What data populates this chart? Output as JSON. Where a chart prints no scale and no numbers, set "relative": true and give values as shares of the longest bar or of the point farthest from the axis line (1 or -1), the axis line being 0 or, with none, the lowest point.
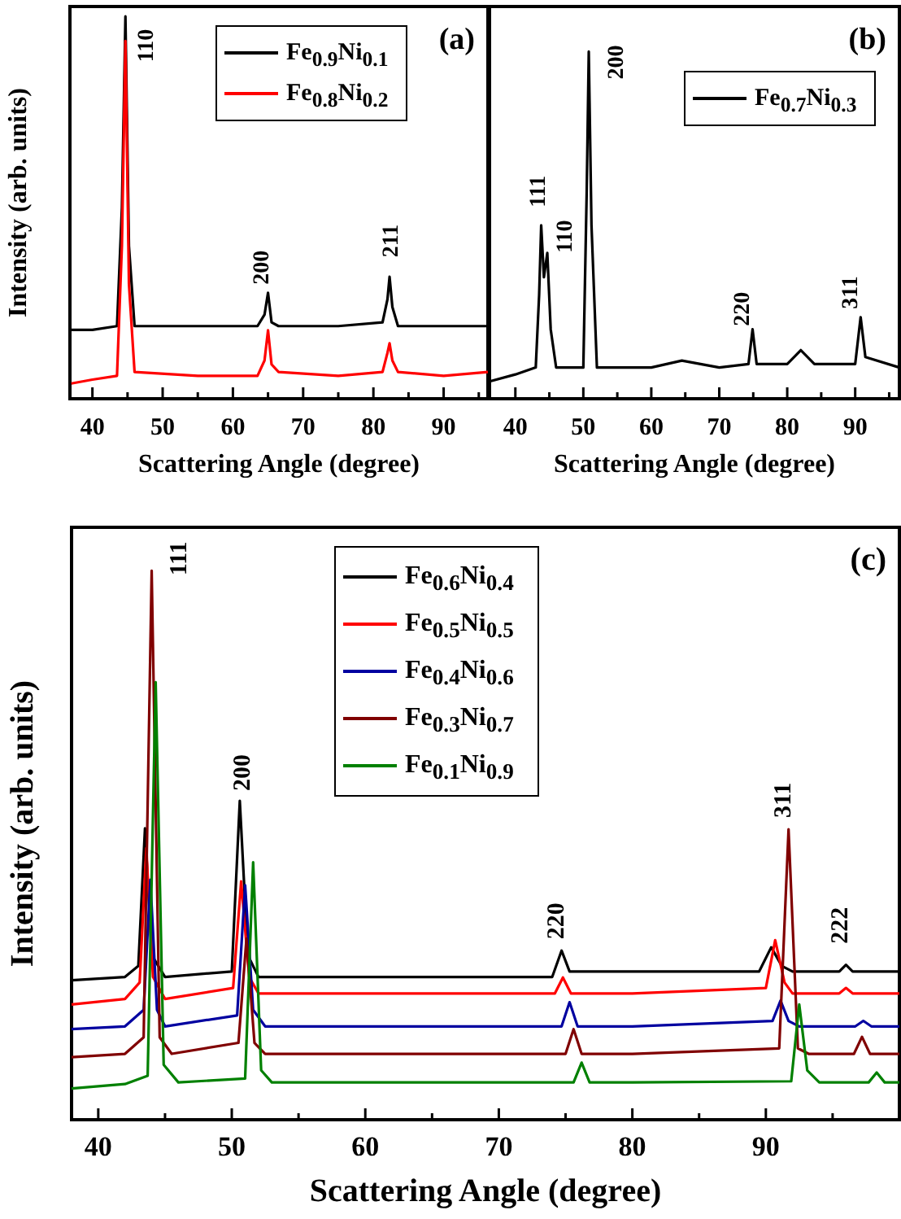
{
  "chart_data": [
    {
      "type": "line",
      "title": "(a)",
      "relative": true,
      "xlabel": "Scattering Angle (degree)",
      "ylabel": "Intensity (arb. units)",
      "xlim": [
        36.8,
        96.3
      ],
      "xticks": [
        40,
        {
          "value": 45,
          "label": null
        },
        50,
        {
          "value": 55,
          "label": null
        },
        60,
        {
          "value": 65,
          "label": null
        },
        70,
        {
          "value": 75,
          "label": null
        },
        80,
        {
          "value": 85,
          "label": null
        },
        90,
        {
          "value": 95,
          "label": null
        }
      ],
      "legend": "top",
      "grid": false,
      "series": [
        {
          "name": "Fe$_{0.9}$Ni$_{0.1}$",
          "color": "#000000",
          "x": [
            37,
            40,
            43.5,
            44.2,
            44.7,
            45.2,
            46,
            55,
            63.5,
            64.5,
            65,
            65.5,
            66.5,
            75,
            81.3,
            82,
            82.3,
            82.7,
            83.5,
            90,
            96.3
          ],
          "values": [
            0.18,
            0.18,
            0.19,
            0.5,
            1,
            0.4,
            0.19,
            0.19,
            0.19,
            0.22,
            0.277,
            0.2,
            0.19,
            0.19,
            0.2,
            0.26,
            0.319,
            0.24,
            0.19,
            0.19,
            0.19
          ]
        },
        {
          "name": "Fe$_{0.8}$Ni$_{0.2}$",
          "color": "#ff0000",
          "x": [
            37,
            40,
            43.5,
            44.2,
            44.7,
            45.2,
            46,
            55,
            63.5,
            64.5,
            65,
            65.5,
            66.5,
            75,
            81.3,
            82,
            82.3,
            82.7,
            83.5,
            90,
            96.3
          ],
          "values": [
            0.04,
            0.05,
            0.06,
            0.4,
            0.936,
            0.3,
            0.07,
            0.06,
            0.06,
            0.1,
            0.179,
            0.09,
            0.07,
            0.06,
            0.07,
            0.12,
            0.145,
            0.1,
            0.07,
            0.06,
            0.07
          ]
        }
      ],
      "annotations": [
        {
          "text": "110",
          "x": 44.7,
          "y": 1
        },
        {
          "text": "200",
          "x": 65,
          "y": 0.277
        },
        {
          "text": "211",
          "x": 82.3,
          "y": 0.319
        }
      ]
    },
    {
      "type": "line",
      "title": "(b)",
      "relative": true,
      "xlabel": "Scattering Angle (degree)",
      "xlim": [
        36.2,
        96.5
      ],
      "xticks": [
        40,
        {
          "value": 45,
          "label": null
        },
        50,
        {
          "value": 55,
          "label": null
        },
        60,
        {
          "value": 65,
          "label": null
        },
        70,
        {
          "value": 75,
          "label": null
        },
        80,
        {
          "value": 85,
          "label": null
        },
        90,
        {
          "value": 95,
          "label": null
        }
      ],
      "legend": "top right",
      "grid": false,
      "series": [
        {
          "name": "Fe$_{0.7}$Ni$_{0.3}$",
          "color": "#000000",
          "x": [
            36.2,
            40,
            43,
            43.5,
            43.8,
            44.2,
            44.7,
            45.2,
            46,
            50,
            50.5,
            50.8,
            51.2,
            52,
            60,
            64.5,
            70,
            74.3,
            74.9,
            75.5,
            80,
            82,
            84,
            90,
            90.8,
            91.5,
            96.5
          ],
          "values": [
            0.05,
            0.07,
            0.09,
            0.3,
            0.5,
            0.35,
            0.42,
            0.2,
            0.09,
            0.09,
            0.6,
            1,
            0.5,
            0.09,
            0.09,
            0.11,
            0.09,
            0.1,
            0.2,
            0.1,
            0.1,
            0.14,
            0.1,
            0.1,
            0.235,
            0.12,
            0.09
          ]
        }
      ],
      "annotations": [
        {
          "text": "111",
          "x": 43.8,
          "y": 0.5
        },
        {
          "text": "110",
          "x": 44.7,
          "y": 0.42
        },
        {
          "text": "200",
          "x": 50.8,
          "y": 1
        },
        {
          "text": "220",
          "x": 74.9,
          "y": 0.2
        },
        {
          "text": "311",
          "x": 90.8,
          "y": 0.235
        }
      ]
    },
    {
      "type": "line",
      "title": "(c)",
      "relative": true,
      "xlabel": "Scattering Angle (degree)",
      "ylabel": "Intensity (arb. units)",
      "xlim": [
        38,
        100
      ],
      "xticks": [
        40,
        {
          "value": 45,
          "label": null
        },
        50,
        {
          "value": 55,
          "label": null
        },
        60,
        {
          "value": 65,
          "label": null
        },
        70,
        {
          "value": 75,
          "label": null
        },
        80,
        {
          "value": 85,
          "label": null
        },
        90,
        {
          "value": 95,
          "label": null
        }
      ],
      "legend": "top",
      "grid": false,
      "series": [
        {
          "name": "Fe$_{0.6}$Ni$_{0.4}$",
          "color": "#000000",
          "x": [
            38,
            42,
            43,
            43.5,
            44,
            45,
            50,
            50.6,
            51.2,
            52,
            60,
            74,
            74.7,
            75.3,
            80,
            89.5,
            90.4,
            91.2,
            92,
            95.5,
            96,
            96.5,
            100
          ],
          "values": [
            0.254,
            0.26,
            0.28,
            0.531,
            0.3,
            0.26,
            0.27,
            0.581,
            0.3,
            0.26,
            0.26,
            0.26,
            0.308,
            0.27,
            0.27,
            0.27,
            0.314,
            0.28,
            0.27,
            0.27,
            0.282,
            0.27,
            0.27
          ]
        },
        {
          "name": "Fe$_{0.5}$Ni$_{0.5}$",
          "color": "#ff0000",
          "x": [
            38,
            42,
            43.1,
            43.6,
            44.1,
            45,
            50.1,
            50.7,
            51.3,
            52,
            60,
            74.2,
            74.8,
            75.4,
            80,
            90,
            90.7,
            91.4,
            92,
            95.5,
            96,
            96.5,
            100
          ],
          "values": [
            0.21,
            0.22,
            0.25,
            0.495,
            0.26,
            0.22,
            0.24,
            0.434,
            0.26,
            0.23,
            0.23,
            0.23,
            0.259,
            0.23,
            0.23,
            0.24,
            0.327,
            0.25,
            0.23,
            0.23,
            0.24,
            0.23,
            0.23
          ]
        },
        {
          "name": "Fe$_{0.4}$Ni$_{0.6}$",
          "color": "#0000a0",
          "x": [
            38,
            42,
            43.4,
            43.9,
            44.4,
            45,
            50.4,
            51,
            51.6,
            52.5,
            60,
            74.7,
            75.3,
            75.9,
            80,
            90.5,
            91.1,
            91.7,
            92.5,
            96.7,
            97.3,
            97.9,
            100
          ],
          "values": [
            0.165,
            0.17,
            0.2,
            0.437,
            0.2,
            0.17,
            0.19,
            0.427,
            0.2,
            0.17,
            0.17,
            0.17,
            0.214,
            0.17,
            0.17,
            0.18,
            0.217,
            0.18,
            0.17,
            0.17,
            0.18,
            0.17,
            0.17
          ]
        },
        {
          "name": "Fe$_{0.3}$Ni$_{0.7}$",
          "color": "#800000",
          "x": [
            38,
            42,
            43.4,
            44,
            44.6,
            45.5,
            50.5,
            51.1,
            51.7,
            52.5,
            60,
            75,
            75.6,
            76.2,
            80,
            91,
            91.7,
            92.4,
            93.2,
            96.6,
            97.2,
            97.8,
            100
          ],
          "values": [
            0.114,
            0.12,
            0.15,
            1,
            0.15,
            0.12,
            0.14,
            0.33,
            0.14,
            0.12,
            0.12,
            0.12,
            0.165,
            0.12,
            0.12,
            0.13,
            0.529,
            0.13,
            0.12,
            0.12,
            0.151,
            0.12,
            0.12
          ]
        },
        {
          "name": "Fe$_{0.1}$Ni$_{0.9}$",
          "color": "#008000",
          "x": [
            38,
            42,
            43.7,
            44.3,
            44.9,
            46,
            51,
            51.6,
            52.2,
            53,
            60,
            75.6,
            76.2,
            76.8,
            80,
            91.9,
            92.5,
            93.1,
            94,
            97.7,
            98.3,
            98.9,
            100
          ],
          "values": [
            0.057,
            0.065,
            0.08,
            0.797,
            0.1,
            0.068,
            0.075,
            0.469,
            0.09,
            0.068,
            0.068,
            0.068,
            0.104,
            0.068,
            0.068,
            0.07,
            0.21,
            0.09,
            0.068,
            0.068,
            0.086,
            0.068,
            0.068
          ]
        }
      ],
      "annotations": [
        {
          "text": "111",
          "x": 44,
          "y": 1
        },
        {
          "text": "200",
          "x": 50.6,
          "y": 0.581
        },
        {
          "text": "220",
          "x": 74.7,
          "y": 0.308
        },
        {
          "text": "311",
          "x": 91.7,
          "y": 0.529
        },
        {
          "text": "222",
          "x": 96,
          "y": 0.282
        }
      ]
    }
  ]
}
